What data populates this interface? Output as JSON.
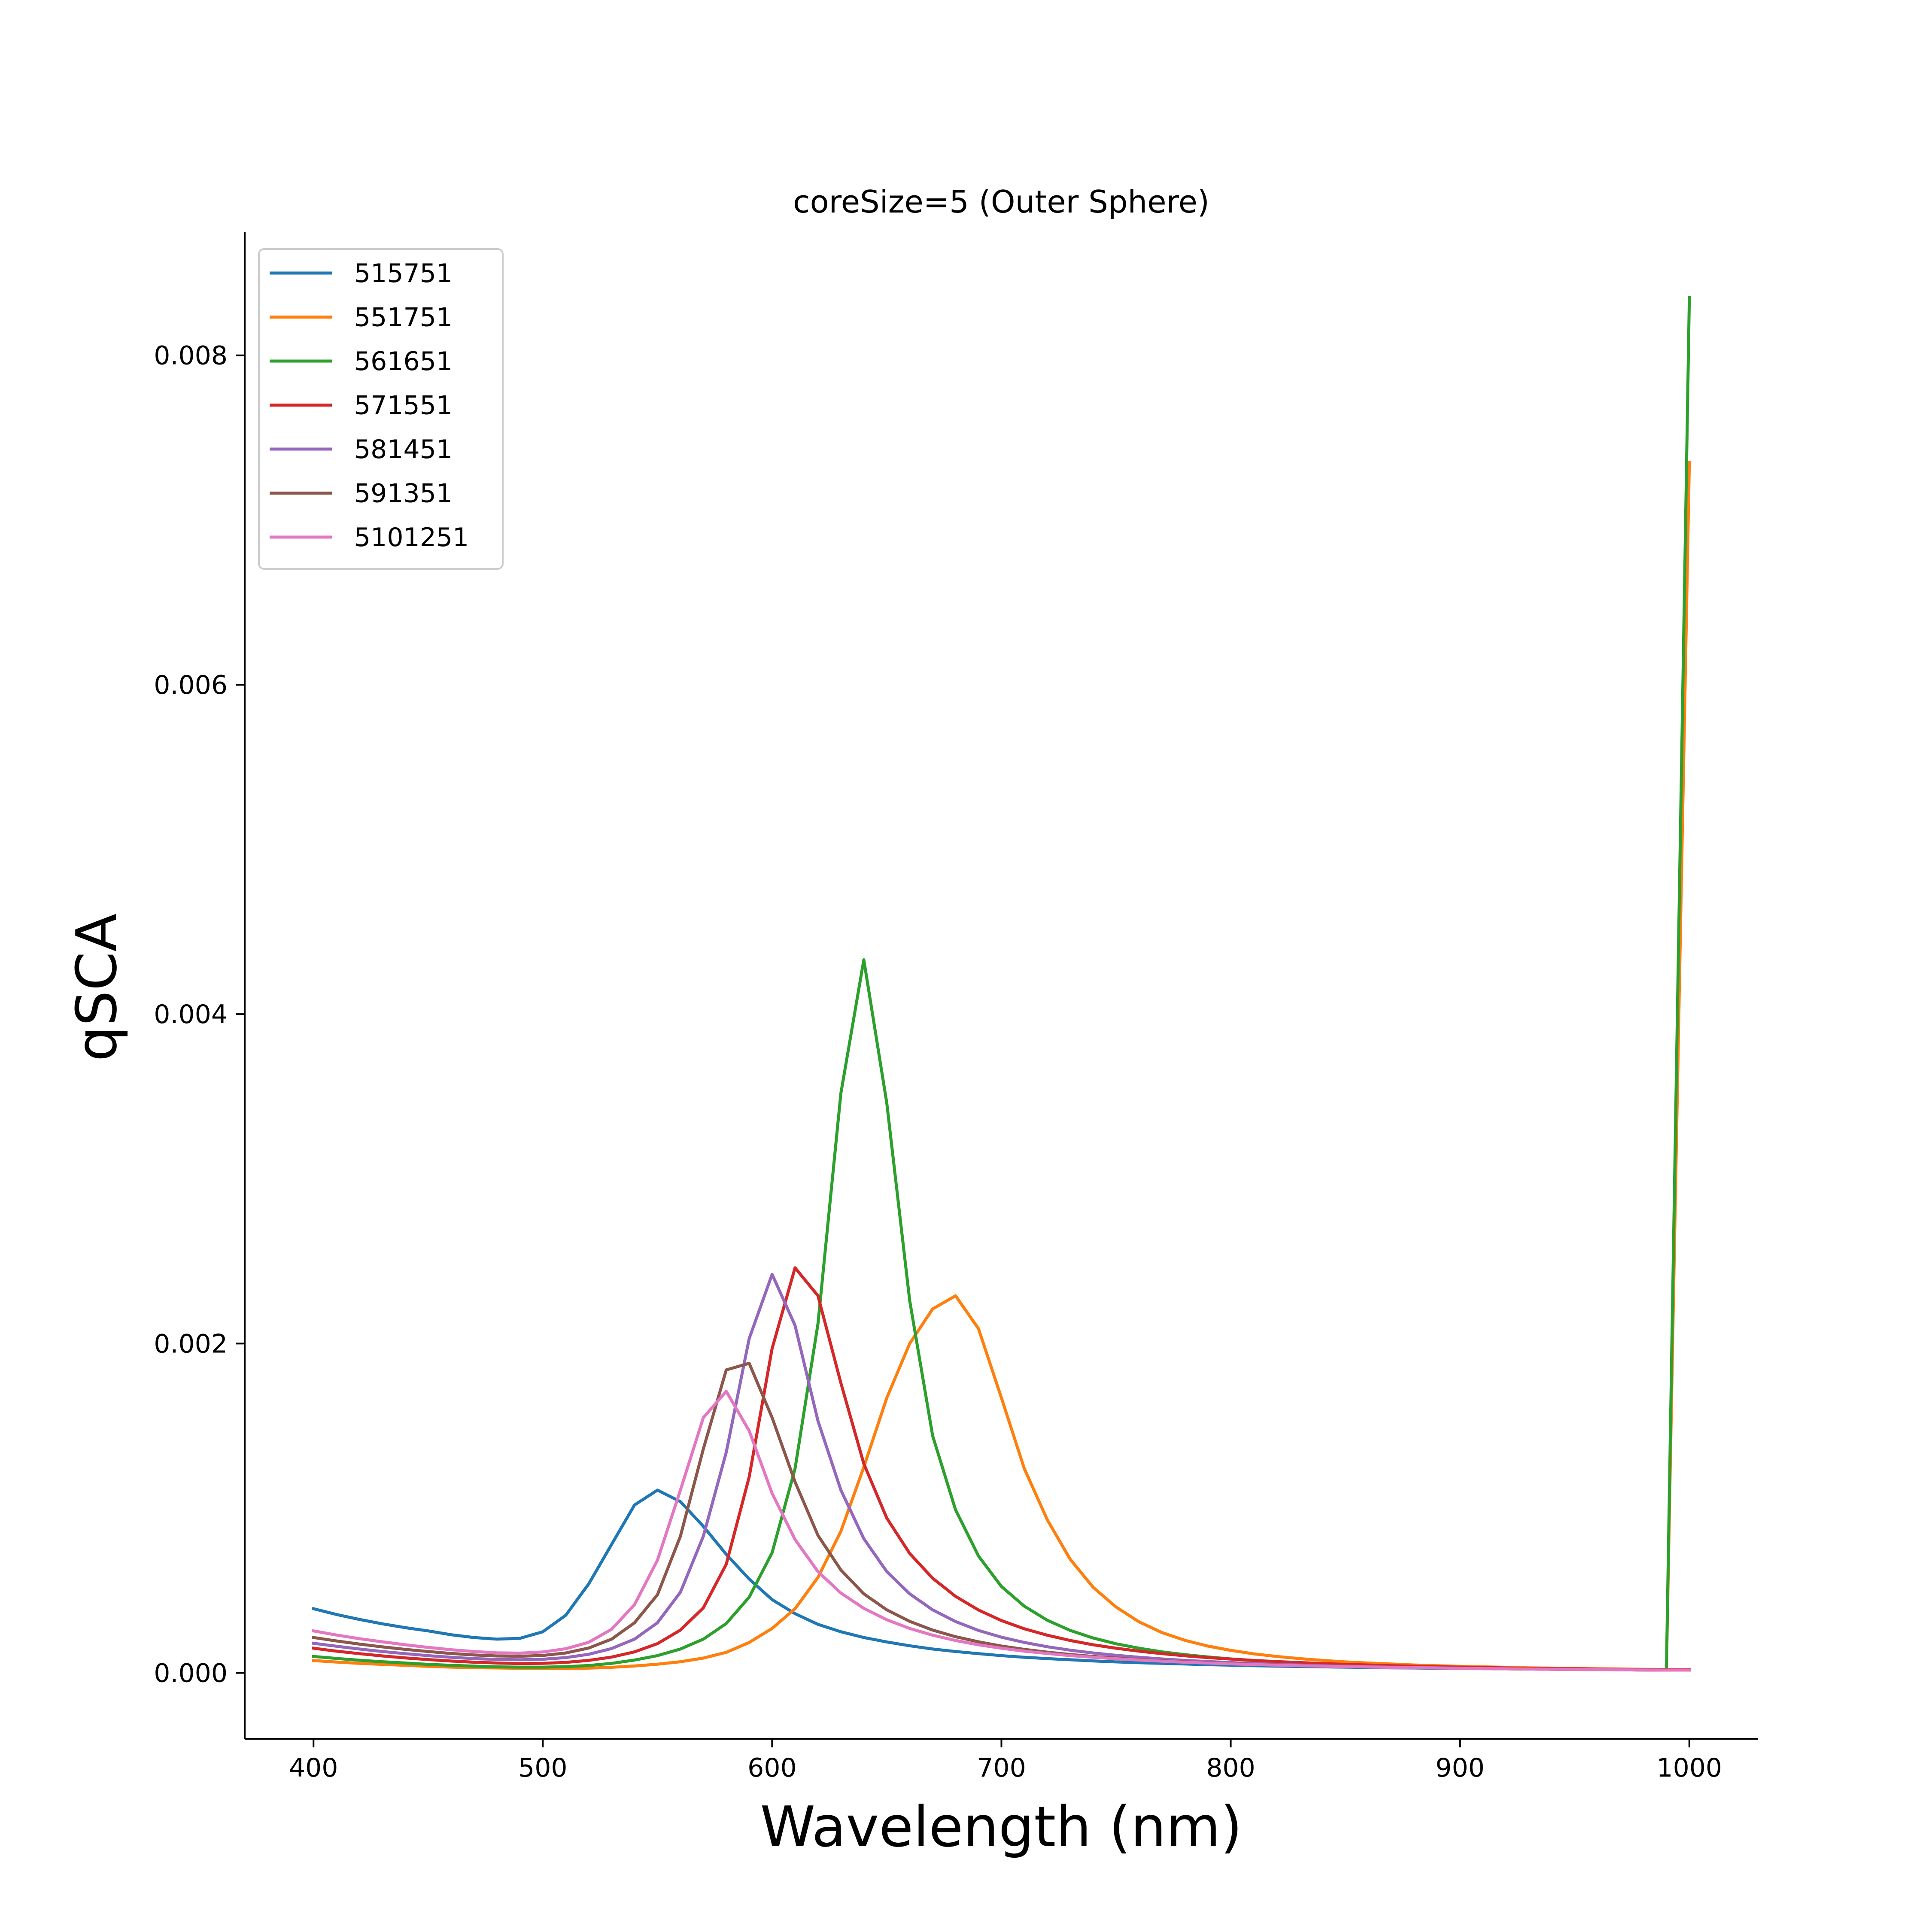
{
  "chart_data": {
    "type": "line",
    "title": "coreSize=5 (Outer Sphere)",
    "xlabel": "Wavelength (nm)",
    "ylabel": "qSCA",
    "xlim": [
      370,
      1030
    ],
    "ylim": [
      -0.0004,
      0.00875
    ],
    "xticks": [
      400,
      500,
      600,
      700,
      800,
      900,
      1000
    ],
    "xtick_labels": [
      "400",
      "500",
      "600",
      "700",
      "800",
      "900",
      "1000"
    ],
    "yticks": [
      0.0,
      0.002,
      0.004,
      0.006,
      0.008
    ],
    "ytick_labels": [
      "0.000",
      "0.002",
      "0.004",
      "0.006",
      "0.008"
    ],
    "grid": false,
    "legend_position": "top-left",
    "x": [
      400,
      410,
      420,
      430,
      440,
      450,
      460,
      470,
      480,
      490,
      500,
      510,
      520,
      530,
      540,
      550,
      560,
      570,
      580,
      590,
      600,
      610,
      620,
      630,
      640,
      650,
      660,
      670,
      680,
      690,
      700,
      710,
      720,
      730,
      740,
      750,
      760,
      770,
      780,
      790,
      800,
      810,
      820,
      830,
      840,
      850,
      860,
      870,
      880,
      890,
      900,
      910,
      920,
      930,
      940,
      950,
      960,
      970,
      980,
      990,
      1000
    ],
    "series": [
      {
        "name": "515751",
        "color": "#1f77b4",
        "values": [
          0.00039,
          0.000355,
          0.000325,
          0.000298,
          0.000275,
          0.000255,
          0.000232,
          0.000215,
          0.000205,
          0.00021,
          0.00025,
          0.00035,
          0.00054,
          0.00078,
          0.00102,
          0.00111,
          0.00104,
          0.00089,
          0.00072,
          0.00057,
          0.000445,
          0.00036,
          0.000295,
          0.00025,
          0.000215,
          0.000188,
          0.000165,
          0.000145,
          0.00013,
          0.000117,
          0.000105,
          9.5e-05,
          8.7e-05,
          8e-05,
          7.3e-05,
          6.7e-05,
          6.2e-05,
          5.8e-05,
          5.4e-05,
          5e-05,
          4.7e-05,
          4.4e-05,
          4.1e-05,
          3.9e-05,
          3.7e-05,
          3.5e-05,
          3.3e-05,
          3.1e-05,
          3e-05,
          2.8e-05,
          2.7e-05,
          2.6e-05,
          2.5e-05,
          2.4e-05,
          2.3e-05,
          2.2e-05,
          2.1e-05,
          2e-05,
          1.9e-05,
          1.8e-05,
          1.8e-05
        ]
      },
      {
        "name": "551751",
        "color": "#ff7f0e",
        "values": [
          7.5e-05,
          6.6e-05,
          5.8e-05,
          5.2e-05,
          4.6e-05,
          4e-05,
          3.5e-05,
          3.2e-05,
          3e-05,
          2.8e-05,
          2.7e-05,
          2.7e-05,
          2.9e-05,
          3.4e-05,
          4.2e-05,
          5.3e-05,
          6.8e-05,
          9e-05,
          0.000125,
          0.000185,
          0.00027,
          0.00039,
          0.00058,
          0.00086,
          0.00125,
          0.00167,
          0.002,
          0.00221,
          0.00229,
          0.00209,
          0.00167,
          0.00124,
          0.00093,
          0.00069,
          0.00052,
          0.0004,
          0.00031,
          0.000245,
          0.000198,
          0.000163,
          0.000137,
          0.000116,
          0.0001,
          8.7e-05,
          7.6e-05,
          6.7e-05,
          6e-05,
          5.4e-05,
          4.8e-05,
          4.4e-05,
          4e-05,
          3.7e-05,
          3.4e-05,
          3.1e-05,
          2.9e-05,
          2.7e-05,
          2.5e-05,
          2.4e-05,
          2.2e-05,
          2.1e-05,
          0.00735
        ]
      },
      {
        "name": "561651",
        "color": "#2ca02c",
        "values": [
          0.0001,
          8.8e-05,
          7.7e-05,
          6.8e-05,
          6e-05,
          5.2e-05,
          4.6e-05,
          4.1e-05,
          3.7e-05,
          3.5e-05,
          3.5e-05,
          3.8e-05,
          4.5e-05,
          5.8e-05,
          7.8e-05,
          0.000105,
          0.000145,
          0.000205,
          0.0003,
          0.00046,
          0.00073,
          0.00124,
          0.00212,
          0.00352,
          0.00433,
          0.00346,
          0.00226,
          0.00144,
          0.00099,
          0.00071,
          0.000525,
          0.000405,
          0.00032,
          0.000258,
          0.000212,
          0.000177,
          0.00015,
          0.000128,
          0.000111,
          9.7e-05,
          8.5e-05,
          7.5e-05,
          6.7e-05,
          6e-05,
          5.4e-05,
          4.9e-05,
          4.5e-05,
          4.1e-05,
          3.8e-05,
          3.5e-05,
          3.2e-05,
          3e-05,
          2.8e-05,
          2.6e-05,
          2.4e-05,
          2.3e-05,
          2.1e-05,
          2e-05,
          1.9e-05,
          1.8e-05,
          0.00835
        ]
      },
      {
        "name": "571551",
        "color": "#d62728",
        "values": [
          0.00015,
          0.000132,
          0.000117,
          0.000103,
          9.1e-05,
          8.1e-05,
          7.2e-05,
          6.5e-05,
          6e-05,
          5.7e-05,
          5.8e-05,
          6.4e-05,
          7.6e-05,
          9.6e-05,
          0.000128,
          0.000178,
          0.00026,
          0.000395,
          0.00066,
          0.00119,
          0.00197,
          0.00246,
          0.00229,
          0.00176,
          0.00127,
          0.00094,
          0.000725,
          0.000575,
          0.000465,
          0.000382,
          0.000318,
          0.000268,
          0.000229,
          0.000197,
          0.000171,
          0.00015,
          0.000132,
          0.000117,
          0.000104,
          9.3e-05,
          8.4e-05,
          7.6e-05,
          6.9e-05,
          6.3e-05,
          5.7e-05,
          5.2e-05,
          4.8e-05,
          4.4e-05,
          4.1e-05,
          3.8e-05,
          3.5e-05,
          3.3e-05,
          3e-05,
          2.8e-05,
          2.6e-05,
          2.5e-05,
          2.3e-05,
          2.2e-05,
          2.1e-05,
          2e-05,
          2e-05
        ]
      },
      {
        "name": "581451",
        "color": "#9467bd",
        "values": [
          0.00018,
          0.000162,
          0.000145,
          0.00013,
          0.000117,
          0.000105,
          9.5e-05,
          8.7e-05,
          8.2e-05,
          8e-05,
          8.3e-05,
          9.3e-05,
          0.000113,
          0.000148,
          0.000205,
          0.000305,
          0.00049,
          0.00083,
          0.00134,
          0.00203,
          0.00242,
          0.00211,
          0.00153,
          0.00111,
          0.000815,
          0.000615,
          0.00048,
          0.000383,
          0.000312,
          0.000258,
          0.000217,
          0.000185,
          0.000159,
          0.000138,
          0.000121,
          0.000107,
          9.5e-05,
          8.5e-05,
          7.6e-05,
          6.9e-05,
          6.3e-05,
          5.7e-05,
          5.2e-05,
          4.8e-05,
          4.4e-05,
          4.1e-05,
          3.8e-05,
          3.5e-05,
          3.3e-05,
          3.1e-05,
          2.9e-05,
          2.7e-05,
          2.5e-05,
          2.4e-05,
          2.2e-05,
          2.1e-05,
          2e-05,
          1.9e-05,
          1.8e-05,
          1.7e-05,
          1.7e-05
        ]
      },
      {
        "name": "591351",
        "color": "#8c564b",
        "values": [
          0.000215,
          0.000194,
          0.000175,
          0.000158,
          0.000143,
          0.00013,
          0.000118,
          0.000109,
          0.000103,
          0.000101,
          0.000106,
          0.000121,
          0.000151,
          0.000205,
          0.000305,
          0.000475,
          0.00083,
          0.00136,
          0.00184,
          0.00188,
          0.00155,
          0.00116,
          0.000835,
          0.000625,
          0.00048,
          0.000383,
          0.000313,
          0.00026,
          0.00022,
          0.000189,
          0.000163,
          0.000143,
          0.000126,
          0.000112,
          0.0001,
          9e-05,
          8.1e-05,
          7.4e-05,
          6.7e-05,
          6.2e-05,
          5.7e-05,
          5.2e-05,
          4.8e-05,
          4.5e-05,
          4.2e-05,
          3.9e-05,
          3.6e-05,
          3.4e-05,
          3.2e-05,
          3e-05,
          2.8e-05,
          2.7e-05,
          2.5e-05,
          2.4e-05,
          2.2e-05,
          2.1e-05,
          2e-05,
          1.9e-05,
          1.8e-05,
          1.7e-05,
          1.7e-05
        ]
      },
      {
        "name": "5101251",
        "color": "#e377c2",
        "values": [
          0.000255,
          0.00023,
          0.000208,
          0.000189,
          0.000171,
          0.000155,
          0.000141,
          0.00013,
          0.000122,
          0.00012,
          0.000127,
          0.000147,
          0.000186,
          0.000265,
          0.000415,
          0.000685,
          0.00111,
          0.00155,
          0.00171,
          0.00147,
          0.00109,
          0.00081,
          0.000615,
          0.000485,
          0.000392,
          0.000323,
          0.00027,
          0.000229,
          0.000197,
          0.000171,
          0.00015,
          0.000132,
          0.000118,
          0.000105,
          9.5e-05,
          8.6e-05,
          7.8e-05,
          7.1e-05,
          6.5e-05,
          6e-05,
          5.5e-05,
          5.1e-05,
          4.7e-05,
          4.4e-05,
          4.1e-05,
          3.8e-05,
          3.6e-05,
          3.4e-05,
          3.2e-05,
          3e-05,
          2.8e-05,
          2.6e-05,
          2.5e-05,
          2.4e-05,
          2.2e-05,
          2.1e-05,
          2e-05,
          1.9e-05,
          1.8e-05,
          1.7e-05,
          1.7e-05
        ]
      }
    ]
  }
}
